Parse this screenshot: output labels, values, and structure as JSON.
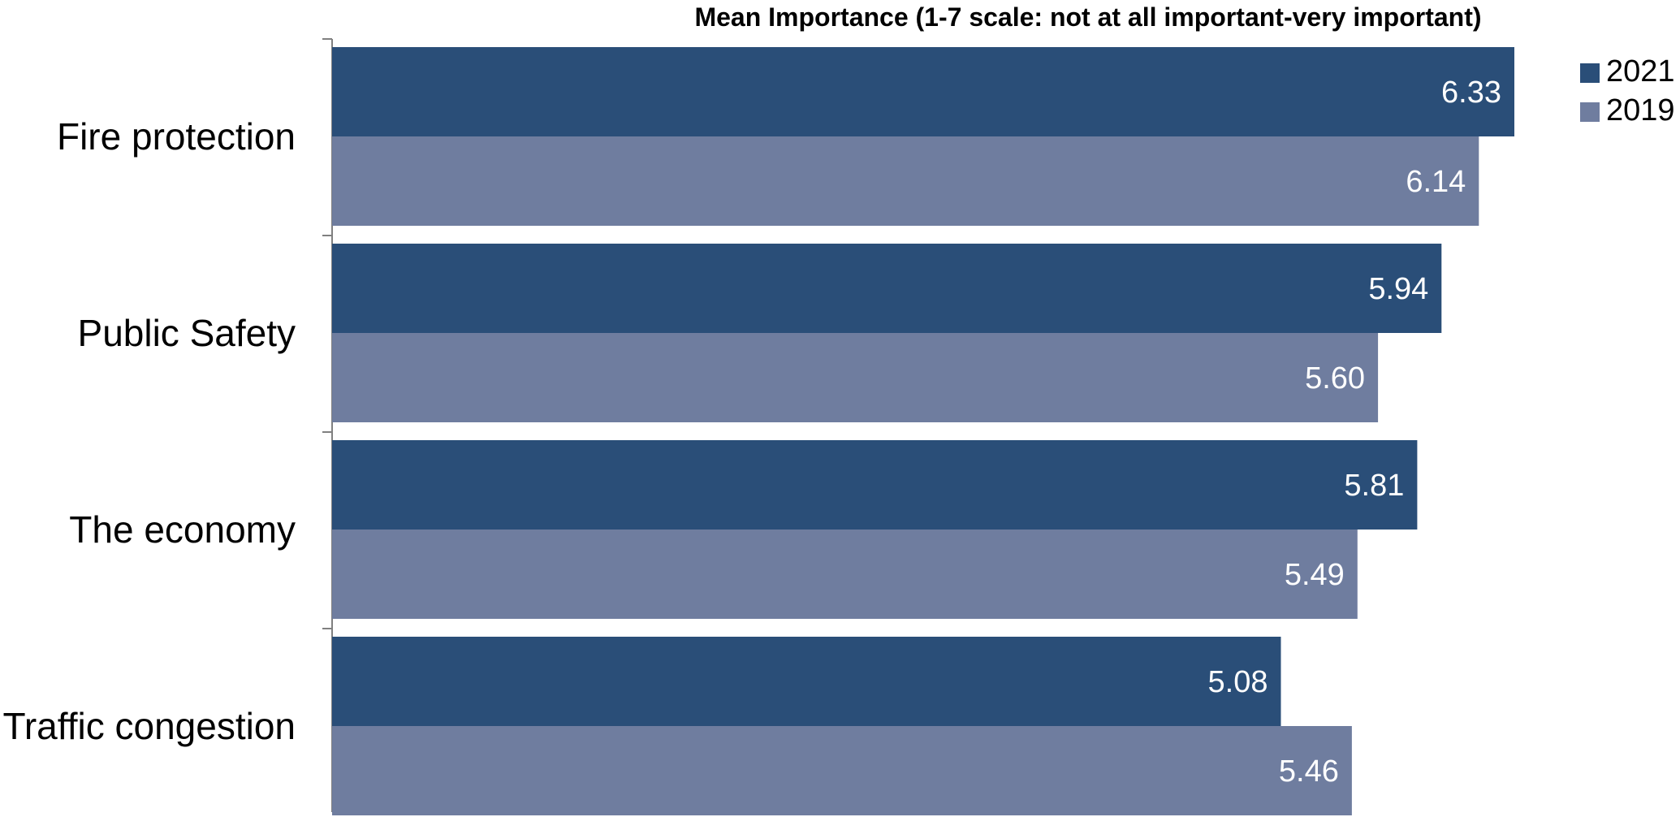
{
  "chart_data": {
    "type": "bar",
    "orientation": "horizontal",
    "title": "Mean Importance (1-7 scale: not at all important-very important)",
    "categories": [
      "Fire protection",
      "Public Safety",
      "The economy",
      "Traffic congestion"
    ],
    "series": [
      {
        "name": "2021",
        "color": "#2a4e78",
        "values": [
          6.33,
          5.94,
          5.81,
          5.08
        ],
        "labels": [
          "6.33",
          "5.94",
          "5.81",
          "5.08"
        ]
      },
      {
        "name": "2019",
        "color": "#6f7d9f",
        "values": [
          6.14,
          5.6,
          5.49,
          5.46
        ],
        "labels": [
          "6.14",
          "5.60",
          "5.49",
          "5.46"
        ]
      }
    ],
    "xlim": [
      0,
      6.33
    ],
    "legend_position": "top-right",
    "grid": false
  }
}
